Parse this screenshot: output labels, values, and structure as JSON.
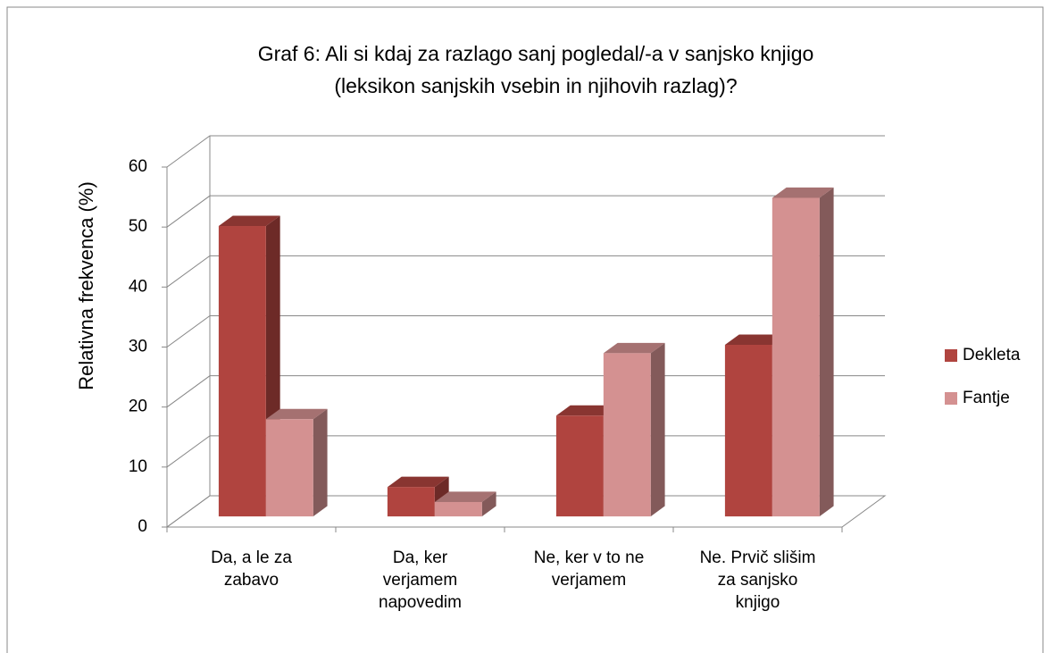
{
  "chart_data": {
    "type": "bar3d",
    "title": "Graf 6: Ali si kdaj za razlago sanj pogledal/-a v sanjsko knjigo\n(leksikon sanjskih vsebin in njihovih razlag)?",
    "y_label": "Relativna frekvenca (%)",
    "categories": [
      "Da, a le za\nzabavo",
      "Da, ker\nverjamem\nnapovedim",
      "Ne, ker v to ne\nverjamem",
      "Ne. Prvič slišim\nza sanjsko\nknjigo"
    ],
    "series": [
      {
        "name": "Dekleta",
        "color": "#b0443f",
        "values": [
          48.4,
          4.9,
          16.8,
          28.6
        ]
      },
      {
        "name": "Fantje",
        "color": "#d49191",
        "values": [
          16.2,
          2.4,
          27.2,
          53.1
        ]
      }
    ],
    "ylim": [
      0,
      60
    ],
    "yticks": [
      0,
      10,
      20,
      30,
      40,
      50,
      60
    ],
    "grid": true,
    "legend": "right"
  }
}
